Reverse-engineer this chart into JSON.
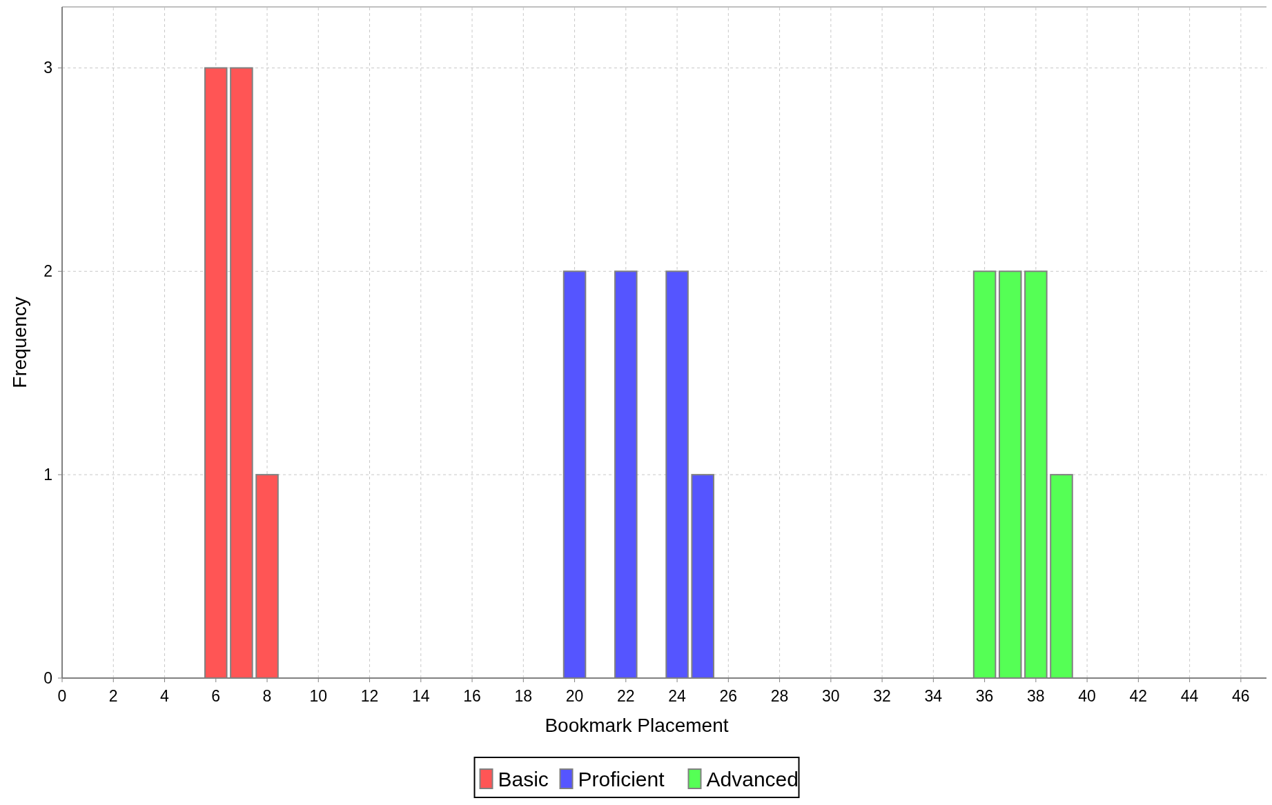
{
  "chart_data": {
    "type": "bar",
    "xlabel": "Bookmark Placement",
    "ylabel": "Frequency",
    "xlim": [
      0,
      47
    ],
    "xticks": [
      0,
      2,
      4,
      6,
      8,
      10,
      12,
      14,
      16,
      18,
      20,
      22,
      24,
      26,
      28,
      30,
      32,
      34,
      36,
      38,
      40,
      42,
      44,
      46
    ],
    "ylim": [
      0,
      3.3
    ],
    "yticks": [
      0,
      1,
      2,
      3
    ],
    "grid": true,
    "legend": "bottom",
    "series": [
      {
        "name": "Basic",
        "color": "#ff5555",
        "x": [
          6,
          7,
          8
        ],
        "values": [
          3,
          3,
          1
        ]
      },
      {
        "name": "Proficient",
        "color": "#5555ff",
        "x": [
          20,
          22,
          24,
          25
        ],
        "values": [
          2,
          2,
          2,
          1
        ]
      },
      {
        "name": "Advanced",
        "color": "#55ff55",
        "x": [
          36,
          37,
          38,
          39
        ],
        "values": [
          2,
          2,
          2,
          1
        ]
      }
    ]
  }
}
